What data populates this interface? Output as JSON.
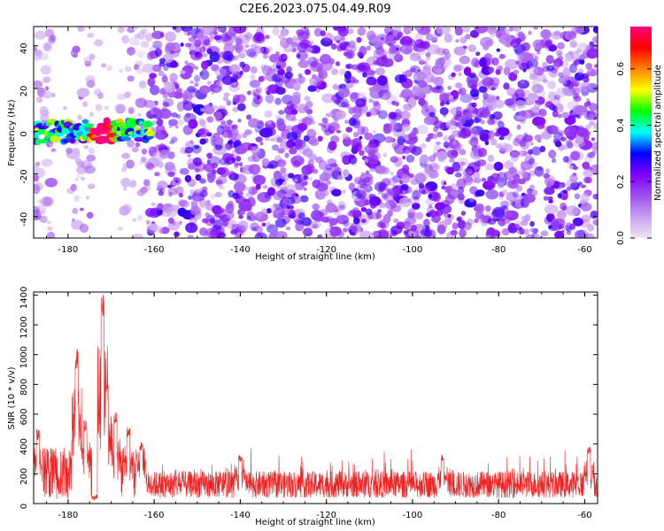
{
  "title": "C2E6.2023.075.04.49.R09",
  "colors": {
    "snr_line": "#ee2222",
    "axis": "#000000",
    "background": "#ffffff"
  },
  "chart_data": [
    {
      "type": "heatmap",
      "name": "spectrogram",
      "xlabel": "Height of straight line (km)",
      "ylabel": "Frequency (Hz)",
      "xlim": [
        -188,
        -57
      ],
      "ylim": [
        -50,
        49
      ],
      "xticks": [
        -180,
        -160,
        -140,
        -120,
        -100,
        -80,
        -60
      ],
      "yticks": [
        -40,
        -20,
        0,
        20,
        40
      ],
      "colorbar": {
        "label": "Normalized spectral amplitude",
        "range": [
          0.0,
          0.75
        ],
        "ticks": [
          0.0,
          0.2,
          0.4,
          0.6
        ],
        "tick_labels": [
          "0.0",
          "0.2",
          "0.4",
          "0.6"
        ],
        "colors": [
          "#f0e6f4",
          "#c8a0f0",
          "#a050f0",
          "#8000ff",
          "#0000ff",
          "#00ffff",
          "#00ff00",
          "#ffff00",
          "#ff8000",
          "#ff0000",
          "#ff0080"
        ]
      },
      "strong_band": {
        "x_start": -188,
        "x_end": -161,
        "freq_center": 0,
        "freq_halfwidth": 5,
        "peak_x": -172,
        "peak_value": 0.72
      },
      "noise_level": 0.2,
      "sparse_region": {
        "x_start": -188,
        "x_end": -161
      },
      "gap_columns": [
        [
          -183,
          -179
        ],
        [
          -174,
          -168
        ]
      ]
    },
    {
      "type": "line",
      "name": "snr",
      "xlabel": "Height of straight line (km)",
      "ylabel": "SNR (10 * v/v)",
      "xlim": [
        -188,
        -57
      ],
      "ylim": [
        0,
        1420
      ],
      "xticks": [
        -180,
        -160,
        -140,
        -120,
        -100,
        -80,
        -60
      ],
      "yticks": [
        0,
        200,
        400,
        600,
        800,
        1000,
        1200,
        1400
      ],
      "baseline": 150,
      "features": [
        {
          "x": -187,
          "value": 500
        },
        {
          "x": -178,
          "value": 1050
        },
        {
          "x": -176,
          "value": 560
        },
        {
          "x": -172,
          "value": 1420
        },
        {
          "x": -171,
          "value": 800
        },
        {
          "x": -169,
          "value": 620
        },
        {
          "x": -166,
          "value": 520
        },
        {
          "x": -163,
          "value": 420
        },
        {
          "x": -140,
          "value": 330
        },
        {
          "x": -93,
          "value": 330
        },
        {
          "x": -59,
          "value": 390
        }
      ],
      "plateau": {
        "x_start": -188,
        "x_end": -162,
        "level": 280
      }
    }
  ]
}
